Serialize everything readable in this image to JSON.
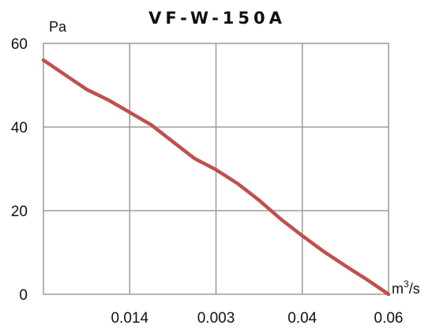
{
  "chart_data": {
    "type": "line",
    "title": "VF-W-150A",
    "ylabel": "Pa",
    "xlabel_base": "m",
    "xlabel_sup": "3",
    "xlabel_tail": "/s",
    "ylim": [
      0,
      60
    ],
    "y_ticks": [
      "0",
      "20",
      "40",
      "60"
    ],
    "x_ticks": [
      "0.014",
      "0.003",
      "0.04",
      "0.06"
    ],
    "grid": true,
    "line_color": "#c0504d",
    "series": [
      {
        "x": [
          0,
          0.25,
          0.5,
          0.75,
          1.0,
          1.25,
          1.5,
          1.75,
          2.0,
          2.25,
          2.5,
          2.75,
          3.0,
          3.25,
          3.5,
          3.75,
          4.0
        ],
        "y": [
          56,
          52.5,
          49,
          46.5,
          43.5,
          40.5,
          36.5,
          32.5,
          29.8,
          26.5,
          22.5,
          18,
          14,
          10.2,
          6.8,
          3.5,
          0
        ]
      }
    ]
  }
}
